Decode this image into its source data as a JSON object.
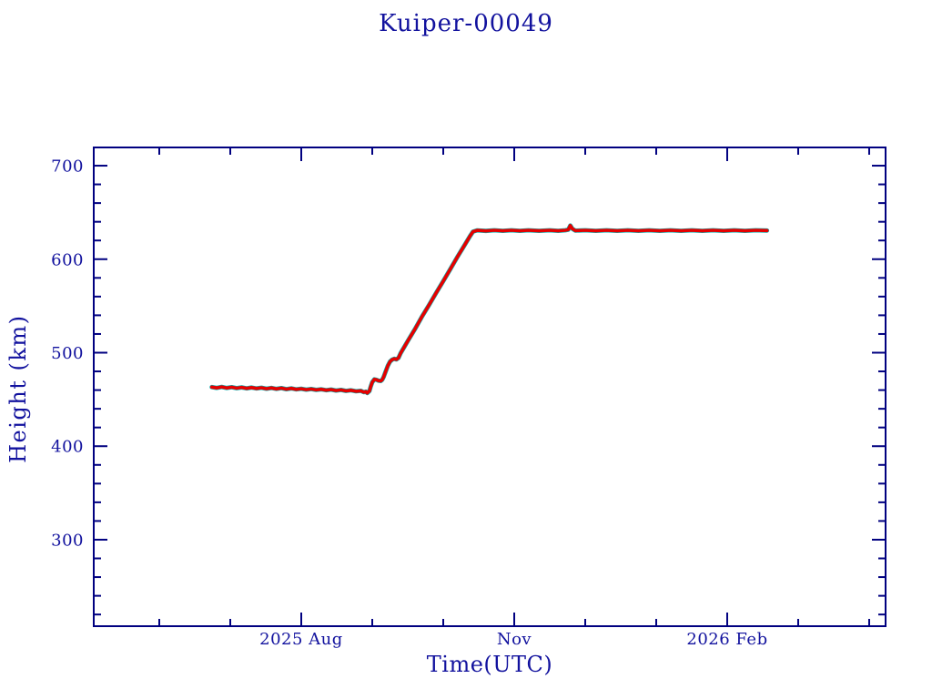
{
  "page": {
    "background": "#ffffff"
  },
  "chart_data": {
    "type": "line",
    "title": "Kuiper-00049",
    "xlabel": "Time(UTC)",
    "ylabel": "Height (km)",
    "x_unit_note": "x values are months since 2025-01-01 (7 = 2025 Aug 1, 10 = 2025 Nov 1, 13 = 2026 Feb 1)",
    "x_range": [
      4.077,
      15.231
    ],
    "y_range": [
      207.5,
      719.5
    ],
    "grid": false,
    "legend": null,
    "x_ticks": [
      {
        "m": 5,
        "major": false,
        "label": ""
      },
      {
        "m": 6,
        "major": false,
        "label": ""
      },
      {
        "m": 7,
        "major": true,
        "label": "2025 Aug"
      },
      {
        "m": 8,
        "major": false,
        "label": ""
      },
      {
        "m": 9,
        "major": false,
        "label": ""
      },
      {
        "m": 10,
        "major": true,
        "label": "Nov"
      },
      {
        "m": 11,
        "major": false,
        "label": ""
      },
      {
        "m": 12,
        "major": false,
        "label": ""
      },
      {
        "m": 13,
        "major": true,
        "label": "2026 Feb"
      },
      {
        "m": 14,
        "major": false,
        "label": ""
      },
      {
        "m": 15,
        "major": false,
        "label": ""
      }
    ],
    "y_ticks_major": [
      300,
      400,
      500,
      600,
      700
    ],
    "y_tick_labels": [
      "300",
      "400",
      "500",
      "600",
      "700"
    ],
    "y_minor_step": 20,
    "colors": {
      "axis": "#000080",
      "text": "#12129e",
      "line_red": "#e60000",
      "line_teal": "#00b4b4"
    },
    "series": [
      {
        "name": "height",
        "color": "#e60000",
        "underline_color": "#00b4b4",
        "points": [
          [
            5.74,
            463.2
          ],
          [
            5.81,
            462.3
          ],
          [
            5.88,
            463.4
          ],
          [
            5.95,
            462.2
          ],
          [
            6.02,
            463.1
          ],
          [
            6.09,
            462.0
          ],
          [
            6.16,
            462.9
          ],
          [
            6.23,
            461.8
          ],
          [
            6.3,
            462.7
          ],
          [
            6.37,
            461.7
          ],
          [
            6.44,
            462.5
          ],
          [
            6.51,
            461.5
          ],
          [
            6.58,
            462.3
          ],
          [
            6.65,
            461.3
          ],
          [
            6.72,
            462.1
          ],
          [
            6.79,
            461.0
          ],
          [
            6.86,
            461.8
          ],
          [
            6.93,
            460.8
          ],
          [
            7.0,
            461.5
          ],
          [
            7.07,
            460.5
          ],
          [
            7.14,
            461.2
          ],
          [
            7.21,
            460.2
          ],
          [
            7.28,
            460.9
          ],
          [
            7.35,
            459.9
          ],
          [
            7.42,
            460.6
          ],
          [
            7.49,
            459.5
          ],
          [
            7.56,
            460.2
          ],
          [
            7.63,
            459.1
          ],
          [
            7.7,
            459.8
          ],
          [
            7.77,
            458.7
          ],
          [
            7.84,
            459.2
          ],
          [
            7.88,
            457.8
          ],
          [
            7.91,
            458.3
          ],
          [
            7.93,
            456.9
          ],
          [
            7.96,
            459.0
          ],
          [
            7.98,
            464.0
          ],
          [
            8.0,
            468.5
          ],
          [
            8.03,
            471.5
          ],
          [
            8.06,
            471.0
          ],
          [
            8.09,
            470.0
          ],
          [
            8.12,
            469.7
          ],
          [
            8.14,
            471.0
          ],
          [
            8.16,
            474.0
          ],
          [
            8.19,
            480.0
          ],
          [
            8.22,
            486.0
          ],
          [
            8.25,
            490.5
          ],
          [
            8.28,
            492.5
          ],
          [
            8.31,
            493.5
          ],
          [
            8.34,
            492.8
          ],
          [
            8.37,
            494.5
          ],
          [
            8.4,
            499.5
          ],
          [
            8.5,
            512.5
          ],
          [
            8.6,
            525.0
          ],
          [
            8.7,
            538.5
          ],
          [
            8.8,
            551.0
          ],
          [
            8.9,
            564.0
          ],
          [
            9.0,
            576.5
          ],
          [
            9.1,
            589.5
          ],
          [
            9.2,
            602.5
          ],
          [
            9.3,
            615.0
          ],
          [
            9.38,
            625.0
          ],
          [
            9.42,
            629.5
          ],
          [
            9.48,
            630.8
          ],
          [
            9.6,
            630.2
          ],
          [
            9.72,
            630.9
          ],
          [
            9.84,
            630.3
          ],
          [
            9.96,
            630.9
          ],
          [
            10.08,
            630.3
          ],
          [
            10.2,
            630.9
          ],
          [
            10.35,
            630.3
          ],
          [
            10.5,
            630.9
          ],
          [
            10.62,
            630.3
          ],
          [
            10.72,
            630.9
          ],
          [
            10.76,
            631.5
          ],
          [
            10.79,
            636.0
          ],
          [
            10.82,
            632.5
          ],
          [
            10.86,
            630.5
          ],
          [
            11.0,
            630.9
          ],
          [
            11.15,
            630.3
          ],
          [
            11.3,
            630.9
          ],
          [
            11.45,
            630.3
          ],
          [
            11.6,
            630.9
          ],
          [
            11.75,
            630.3
          ],
          [
            11.9,
            630.9
          ],
          [
            12.05,
            630.3
          ],
          [
            12.2,
            630.9
          ],
          [
            12.35,
            630.3
          ],
          [
            12.5,
            630.9
          ],
          [
            12.65,
            630.3
          ],
          [
            12.8,
            630.9
          ],
          [
            12.95,
            630.3
          ],
          [
            13.1,
            630.9
          ],
          [
            13.25,
            630.3
          ],
          [
            13.4,
            630.9
          ],
          [
            13.56,
            630.6
          ]
        ]
      }
    ]
  }
}
